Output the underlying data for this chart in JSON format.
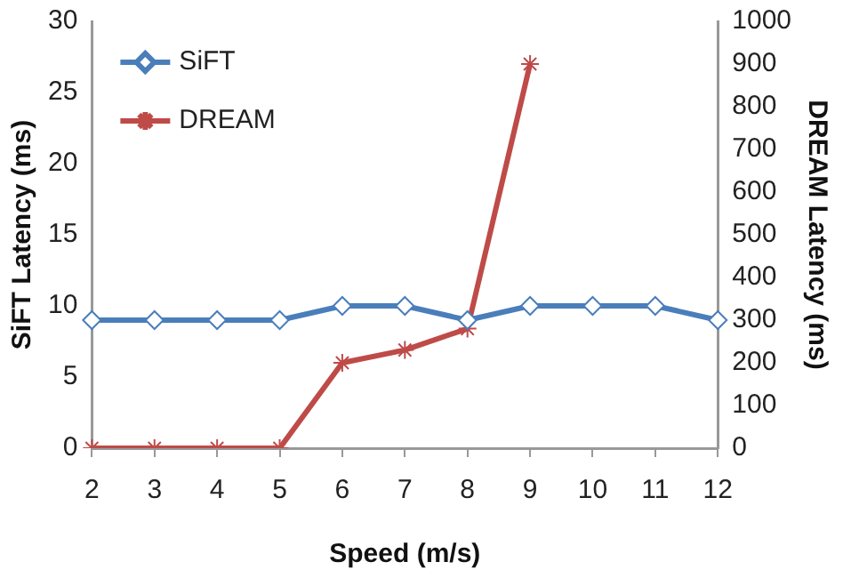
{
  "chart_data": {
    "type": "line",
    "xlabel": "Speed (m/s)",
    "ylabel": "SiFT Latency (ms)",
    "y2label": "DREAM Latency (ms)",
    "categories": [
      "2",
      "3",
      "4",
      "5",
      "6",
      "7",
      "8",
      "9",
      "10",
      "11",
      "12"
    ],
    "series": [
      {
        "name": "SiFT",
        "color": "#4a7ebb",
        "marker": "diamond",
        "values": [
          9,
          9,
          9,
          9,
          10,
          10,
          9,
          10,
          10,
          10,
          9
        ]
      },
      {
        "name": "DREAM",
        "color": "#be4b48",
        "marker": "cross",
        "axis": "y2",
        "values": [
          0,
          0,
          0,
          0,
          200,
          230,
          280,
          900,
          null,
          null,
          null
        ]
      }
    ],
    "ylim": [
      0,
      30
    ],
    "yticks": [
      0,
      5,
      10,
      15,
      20,
      25,
      30
    ],
    "y2lim": [
      0,
      1000
    ],
    "y2ticks": [
      0,
      100,
      200,
      300,
      400,
      500,
      600,
      700,
      800,
      900,
      1000
    ],
    "grid": false,
    "legend": "top left"
  }
}
